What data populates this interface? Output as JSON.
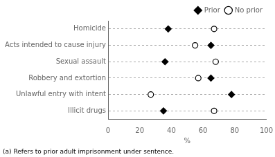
{
  "chart_data": {
    "type": "dot",
    "orientation": "horizontal",
    "categories": [
      "Homicide",
      "Acts intended to cause injury",
      "Sexual assault",
      "Robbery and extortion",
      "Unlawful entry with intent",
      "Illicit drugs"
    ],
    "series": [
      {
        "name": "Prior",
        "color": "#000000",
        "marker": "diamond",
        "values": [
          38,
          65,
          36,
          65,
          78,
          35
        ]
      },
      {
        "name": "No prior",
        "color": "#000000",
        "marker": "circle-open",
        "values": [
          67,
          55,
          68,
          57,
          27,
          67
        ]
      }
    ],
    "xlabel": "%",
    "xlim": [
      0,
      100
    ],
    "xticks": [
      0,
      20,
      40,
      60,
      80,
      100
    ],
    "grid": "y",
    "legend": "upper right",
    "annotations": [
      "(a) Refers to prior adult imprisonment under sentence."
    ]
  }
}
